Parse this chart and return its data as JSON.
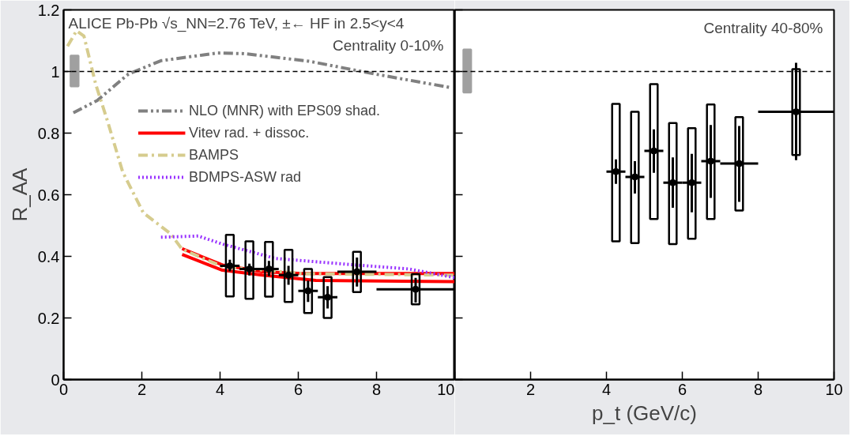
{
  "chart_data": [
    {
      "type": "scatter",
      "title": "ALICE Pb-Pb √s_NN=2.76 TeV,  ±← HF in 2.5<y<4",
      "ylabel": "R_AA",
      "annotations": [
        "Centrality 0-10%"
      ],
      "xlim": [
        0,
        10
      ],
      "ylim": [
        0,
        1.2
      ],
      "xticks": [
        0,
        2,
        4,
        6,
        8,
        10
      ],
      "yticks": [
        0,
        0.2,
        0.4,
        0.6,
        0.8,
        1,
        1.2
      ],
      "legend": "top",
      "marker": "circle",
      "ref_lines": [
        {
          "axis": "y",
          "value": 1,
          "line_style": "dashed",
          "color": "#000000"
        }
      ],
      "series": [
        {
          "type": "line",
          "name": "NLO (MNR) with EPS09 shad.",
          "color": "#808080",
          "marker": "none",
          "line_style": "dashdotdot",
          "x": [
            0.25,
            0.86,
            1.66,
            2.49,
            3.93,
            4.61,
            6.29,
            7.95,
            9.93
          ],
          "values": [
            0.866,
            0.906,
            0.992,
            1.035,
            1.06,
            1.058,
            1.033,
            0.992,
            0.947
          ]
        },
        {
          "type": "line",
          "name": "Vitev rad. + dissoc.",
          "color": "#ff0000",
          "marker": "none",
          "line_style": "solid",
          "x": [
            3.03,
            4.06,
            5.08,
            6.1,
            10
          ],
          "values": [
            0.425,
            0.372,
            0.35,
            0.344,
            0.344
          ]
        },
        {
          "type": "line",
          "color": "#ff0000",
          "marker": "none",
          "line_style": "solid",
          "x": [
            3.03,
            4.06,
            5.08,
            6.45,
            10
          ],
          "values": [
            0.406,
            0.355,
            0.339,
            0.322,
            0.318
          ]
        },
        {
          "type": "line",
          "name": "BAMPS",
          "color": "#d6cc8e",
          "marker": "none",
          "line_style": "dashdot",
          "x": [
            0.1,
            0.33,
            0.52,
            0.82,
            1.13,
            1.51,
            2.04,
            2.73,
            3.03,
            4.06,
            6.1,
            10
          ],
          "values": [
            1.082,
            1.132,
            1.115,
            0.959,
            0.836,
            0.674,
            0.541,
            0.474,
            0.423,
            0.367,
            0.344,
            0.339
          ]
        },
        {
          "type": "line",
          "name": "BDMPS-ASW rad",
          "color": "#9933ff",
          "marker": "none",
          "line_style": "dotted",
          "x": [
            2.49,
            3.44,
            4.06,
            5.42,
            7.47,
            8.83,
            10
          ],
          "values": [
            0.462,
            0.466,
            0.44,
            0.393,
            0.372,
            0.359,
            0.331
          ]
        },
        {
          "type": "bar",
          "color": "#a0a0a0",
          "x": [
            0.28
          ],
          "base": [
            0.952
          ],
          "values": [
            0.099
          ]
        },
        {
          "type": "bar",
          "color": "#000000",
          "x": [
            4.25,
            4.75,
            5.25,
            5.75,
            6.25,
            6.75,
            7.5,
            9
          ],
          "base": [
            0.27,
            0.262,
            0.269,
            0.252,
            0.216,
            0.2,
            0.284,
            0.244
          ],
          "values": [
            0.2,
            0.187,
            0.178,
            0.169,
            0.143,
            0.133,
            0.131,
            0.098
          ]
        },
        {
          "color": "#000000",
          "x": [
            4.25,
            4.75,
            5.25,
            5.75,
            6.25,
            6.75,
            7.5,
            9
          ],
          "values": [
            0.369,
            0.359,
            0.359,
            0.339,
            0.288,
            0.267,
            0.35,
            0.293
          ],
          "errors": [
            [
              0.351,
              0.389
            ],
            [
              0.338,
              0.376
            ],
            [
              0.336,
              0.385
            ],
            [
              0.308,
              0.369
            ],
            [
              0.252,
              0.321
            ],
            [
              0.231,
              0.303
            ],
            [
              0.302,
              0.396
            ],
            [
              0.25,
              0.33
            ]
          ],
          "xerrors": [
            0.25,
            0.25,
            0.25,
            0.25,
            0.25,
            0.25,
            0.5,
            1
          ]
        }
      ]
    },
    {
      "type": "scatter",
      "xlabel": "p_t (GeV/c)",
      "annotations": [
        "Centrality 40-80%"
      ],
      "xlim": [
        0,
        10
      ],
      "ylim": [
        0,
        1.2
      ],
      "xticks": [
        {
          "value": 0,
          "label": null
        },
        2,
        4,
        6,
        8,
        10
      ],
      "yticks": [
        0,
        0.2,
        0.4,
        0.6,
        0.8,
        1,
        1.2
      ],
      "tick_labels": "x",
      "marker": "circle",
      "ref_lines": [
        {
          "axis": "y",
          "value": 1,
          "line_style": "dashed",
          "color": "#000000"
        }
      ],
      "series": [
        {
          "type": "bar",
          "color": "#a0a0a0",
          "x": [
            0.33
          ],
          "base": [
            0.932
          ],
          "values": [
            0.139
          ]
        },
        {
          "type": "bar",
          "color": "#000000",
          "x": [
            4.25,
            4.75,
            5.25,
            5.75,
            6.25,
            6.75,
            7.5,
            9
          ],
          "base": [
            0.449,
            0.443,
            0.521,
            0.44,
            0.457,
            0.521,
            0.549,
            0.729
          ],
          "values": [
            0.446,
            0.426,
            0.438,
            0.393,
            0.359,
            0.372,
            0.303,
            0.279
          ]
        },
        {
          "color": "#000000",
          "x": [
            4.25,
            4.75,
            5.25,
            5.75,
            6.25,
            6.75,
            7.5,
            9
          ],
          "values": [
            0.675,
            0.658,
            0.742,
            0.639,
            0.639,
            0.709,
            0.701,
            0.869
          ],
          "errors": [
            [
              0.635,
              0.715
            ],
            [
              0.604,
              0.709
            ],
            [
              0.671,
              0.812
            ],
            [
              0.558,
              0.721
            ],
            [
              0.543,
              0.733
            ],
            [
              0.59,
              0.826
            ],
            [
              0.577,
              0.823
            ],
            [
              0.712,
              1.028
            ]
          ],
          "xerrors": [
            0.25,
            0.25,
            0.25,
            0.25,
            0.25,
            0.25,
            0.5,
            1
          ]
        }
      ]
    }
  ]
}
